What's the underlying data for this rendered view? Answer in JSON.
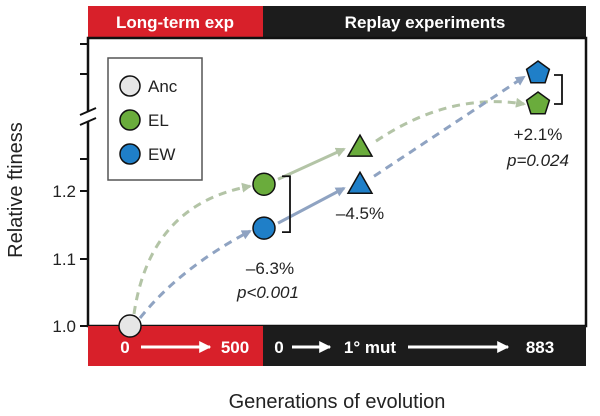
{
  "chart_data": {
    "type": "scatter",
    "title": "",
    "header_left": "Long-term exp",
    "header_right": "Replay experiments",
    "xlabel": "Generations of evolution",
    "ylabel": "Relative ftiness",
    "x_bar_left": {
      "start": "0",
      "end": "500"
    },
    "x_bar_right": {
      "start": "0",
      "mid": "1° mut",
      "end": "883"
    },
    "yticks": [
      "1.0",
      "1.1",
      "1.2"
    ],
    "ylim": [
      1.0,
      1.3
    ],
    "y_axis_break": true,
    "grid": false,
    "legend_position": "top-left",
    "legend": [
      {
        "key": "Anc",
        "label": "Anc",
        "color": "#e6e6e6",
        "shape": "circle"
      },
      {
        "key": "EL",
        "label": "EL",
        "color": "#6aac3c",
        "shape": "circle"
      },
      {
        "key": "EW",
        "label": "EW",
        "color": "#1f7fc8",
        "shape": "circle"
      }
    ],
    "series": [
      {
        "name": "Anc",
        "stage": "Generation 0",
        "fitness": 1.0,
        "color": "#e6e6e6",
        "shape": "circle"
      },
      {
        "name": "EL",
        "points": [
          {
            "stage": "Generation 500",
            "fitness": 1.21,
            "shape": "circle"
          },
          {
            "stage": "1° mut",
            "fitness": 1.265,
            "shape": "triangle"
          },
          {
            "stage": "Generation 883",
            "fitness": "above break",
            "shape": "pentagon"
          }
        ],
        "color": "#6aac3c",
        "path_color": "#b3c4a6"
      },
      {
        "name": "EW",
        "points": [
          {
            "stage": "Generation 500",
            "fitness": 1.145,
            "shape": "circle"
          },
          {
            "stage": "1° mut",
            "fitness": 1.21,
            "shape": "triangle"
          },
          {
            "stage": "Generation 883",
            "fitness": "above break",
            "shape": "pentagon"
          }
        ],
        "color": "#1f7fc8",
        "path_color": "#8fa3c2"
      }
    ],
    "annotations": [
      {
        "id": "gen500",
        "lines": [
          "–6.3%",
          "p<0.001"
        ]
      },
      {
        "id": "mut1",
        "lines": [
          "–4.5%"
        ]
      },
      {
        "id": "gen883",
        "lines": [
          "+2.1%",
          "p=0.024"
        ]
      }
    ],
    "colors": {
      "header_red": "#d8202a",
      "header_black": "#1c1c1c"
    }
  }
}
